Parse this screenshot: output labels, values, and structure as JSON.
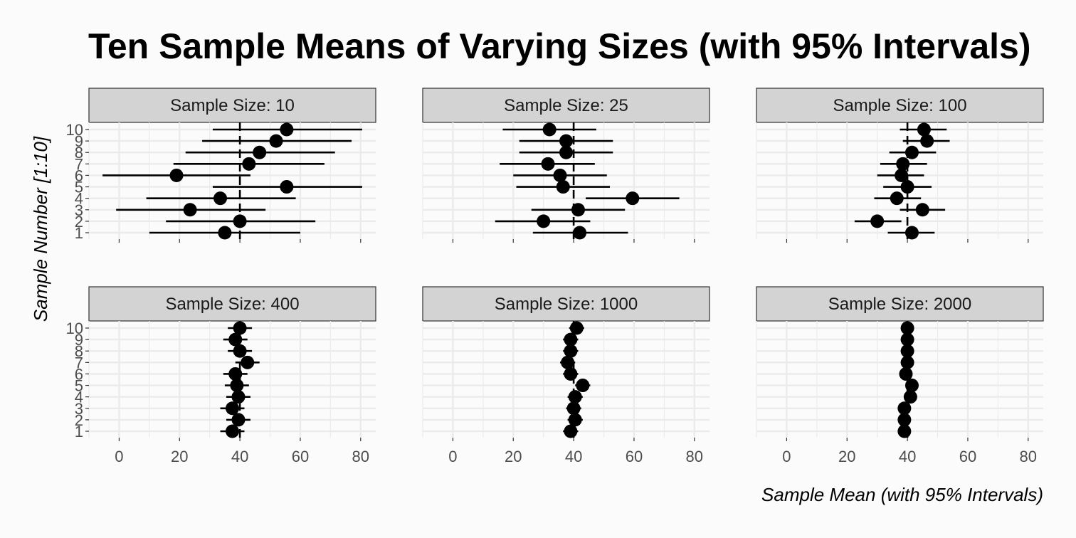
{
  "chart_data": {
    "type": "scatter",
    "title": "Ten Sample Means of Varying Sizes (with 95% Intervals)",
    "xlabel": "Sample Mean (with 95% Intervals)",
    "ylabel": "Sample Number [1:10]",
    "xlim": [
      -10,
      85
    ],
    "x_ticks": [
      0,
      20,
      40,
      60,
      80
    ],
    "y_ticks": [
      1,
      2,
      3,
      4,
      5,
      6,
      7,
      8,
      9,
      10
    ],
    "reference_line": 40,
    "grid": true,
    "facet_prefix": "Sample Size: ",
    "panels": [
      {
        "sample_size": "10",
        "points": [
          {
            "sample": 1,
            "mean": 35,
            "lower": 10,
            "upper": 60
          },
          {
            "sample": 2,
            "mean": 40,
            "lower": 15.5,
            "upper": 65
          },
          {
            "sample": 3,
            "mean": 23.5,
            "lower": -1,
            "upper": 48.5
          },
          {
            "sample": 4,
            "mean": 33.5,
            "lower": 9,
            "upper": 58.5
          },
          {
            "sample": 5,
            "mean": 55.5,
            "lower": 31,
            "upper": 80.5
          },
          {
            "sample": 6,
            "mean": 19,
            "lower": -5.5,
            "upper": 43.5
          },
          {
            "sample": 7,
            "mean": 43,
            "lower": 18,
            "upper": 68
          },
          {
            "sample": 8,
            "mean": 46.5,
            "lower": 22,
            "upper": 71.5
          },
          {
            "sample": 9,
            "mean": 52,
            "lower": 27.5,
            "upper": 77
          },
          {
            "sample": 10,
            "mean": 55.5,
            "lower": 31,
            "upper": 80.5
          }
        ]
      },
      {
        "sample_size": "25",
        "points": [
          {
            "sample": 1,
            "mean": 42,
            "lower": 26.5,
            "upper": 58
          },
          {
            "sample": 2,
            "mean": 30,
            "lower": 14,
            "upper": 45.5
          },
          {
            "sample": 3,
            "mean": 41.5,
            "lower": 26,
            "upper": 57
          },
          {
            "sample": 4,
            "mean": 59.5,
            "lower": 44,
            "upper": 75
          },
          {
            "sample": 5,
            "mean": 36.5,
            "lower": 21,
            "upper": 52
          },
          {
            "sample": 6,
            "mean": 35.5,
            "lower": 20,
            "upper": 51
          },
          {
            "sample": 7,
            "mean": 31.5,
            "lower": 15.5,
            "upper": 47
          },
          {
            "sample": 8,
            "mean": 37.5,
            "lower": 22,
            "upper": 53
          },
          {
            "sample": 9,
            "mean": 37.5,
            "lower": 22,
            "upper": 53
          },
          {
            "sample": 10,
            "mean": 32,
            "lower": 16.5,
            "upper": 47.5
          }
        ]
      },
      {
        "sample_size": "100",
        "points": [
          {
            "sample": 1,
            "mean": 41.5,
            "lower": 33.5,
            "upper": 49
          },
          {
            "sample": 2,
            "mean": 30,
            "lower": 22.5,
            "upper": 38
          },
          {
            "sample": 3,
            "mean": 45,
            "lower": 37.5,
            "upper": 52.5
          },
          {
            "sample": 4,
            "mean": 36.5,
            "lower": 29,
            "upper": 44.5
          },
          {
            "sample": 5,
            "mean": 40,
            "lower": 32,
            "upper": 48
          },
          {
            "sample": 6,
            "mean": 38,
            "lower": 30,
            "upper": 45.5
          },
          {
            "sample": 7,
            "mean": 38.5,
            "lower": 31,
            "upper": 46.5
          },
          {
            "sample": 8,
            "mean": 41.5,
            "lower": 34,
            "upper": 49.5
          },
          {
            "sample": 9,
            "mean": 46.5,
            "lower": 38.5,
            "upper": 54
          },
          {
            "sample": 10,
            "mean": 45.5,
            "lower": 37.5,
            "upper": 53
          }
        ]
      },
      {
        "sample_size": "400",
        "points": [
          {
            "sample": 1,
            "mean": 37.5,
            "lower": 33.5,
            "upper": 41.5
          },
          {
            "sample": 2,
            "mean": 39.5,
            "lower": 35.5,
            "upper": 43.5
          },
          {
            "sample": 3,
            "mean": 37.5,
            "lower": 33.5,
            "upper": 41.5
          },
          {
            "sample": 4,
            "mean": 39.5,
            "lower": 35.5,
            "upper": 43.5
          },
          {
            "sample": 5,
            "mean": 39,
            "lower": 35,
            "upper": 43
          },
          {
            "sample": 6,
            "mean": 38.5,
            "lower": 34.5,
            "upper": 42.5
          },
          {
            "sample": 7,
            "mean": 42.5,
            "lower": 38.5,
            "upper": 46.5
          },
          {
            "sample": 8,
            "mean": 40,
            "lower": 36,
            "upper": 44
          },
          {
            "sample": 9,
            "mean": 38.5,
            "lower": 34.5,
            "upper": 42.5
          },
          {
            "sample": 10,
            "mean": 40,
            "lower": 36,
            "upper": 44
          }
        ]
      },
      {
        "sample_size": "1000",
        "points": [
          {
            "sample": 1,
            "mean": 39,
            "lower": 36.5,
            "upper": 41.5
          },
          {
            "sample": 2,
            "mean": 40.5,
            "lower": 38,
            "upper": 43
          },
          {
            "sample": 3,
            "mean": 40,
            "lower": 37.5,
            "upper": 42.5
          },
          {
            "sample": 4,
            "mean": 40.5,
            "lower": 38,
            "upper": 43
          },
          {
            "sample": 5,
            "mean": 43,
            "lower": 40.5,
            "upper": 45.5
          },
          {
            "sample": 6,
            "mean": 39,
            "lower": 36.5,
            "upper": 41.5
          },
          {
            "sample": 7,
            "mean": 38,
            "lower": 35.5,
            "upper": 40.5
          },
          {
            "sample": 8,
            "mean": 39,
            "lower": 36.5,
            "upper": 41.5
          },
          {
            "sample": 9,
            "mean": 39,
            "lower": 36.5,
            "upper": 41.5
          },
          {
            "sample": 10,
            "mean": 41,
            "lower": 38.5,
            "upper": 43.5
          }
        ]
      },
      {
        "sample_size": "2000",
        "points": [
          {
            "sample": 1,
            "mean": 39,
            "lower": 37.5,
            "upper": 40.5
          },
          {
            "sample": 2,
            "mean": 39,
            "lower": 37.5,
            "upper": 40.5
          },
          {
            "sample": 3,
            "mean": 39,
            "lower": 37.5,
            "upper": 40.5
          },
          {
            "sample": 4,
            "mean": 41,
            "lower": 39.5,
            "upper": 42.5
          },
          {
            "sample": 5,
            "mean": 41.5,
            "lower": 40,
            "upper": 43
          },
          {
            "sample": 6,
            "mean": 39.5,
            "lower": 38,
            "upper": 41
          },
          {
            "sample": 7,
            "mean": 40,
            "lower": 38.5,
            "upper": 41.5
          },
          {
            "sample": 8,
            "mean": 40,
            "lower": 38.5,
            "upper": 41.5
          },
          {
            "sample": 9,
            "mean": 40,
            "lower": 38.5,
            "upper": 41.5
          },
          {
            "sample": 10,
            "mean": 40,
            "lower": 38.5,
            "upper": 41.5
          }
        ]
      }
    ]
  },
  "colors": {
    "background": "#fbfbfb",
    "strip_fill": "#d3d3d3",
    "strip_border": "#333333",
    "grid": "#ebebeb",
    "marks": "#000000",
    "tick_text": "#4d4d4d"
  }
}
